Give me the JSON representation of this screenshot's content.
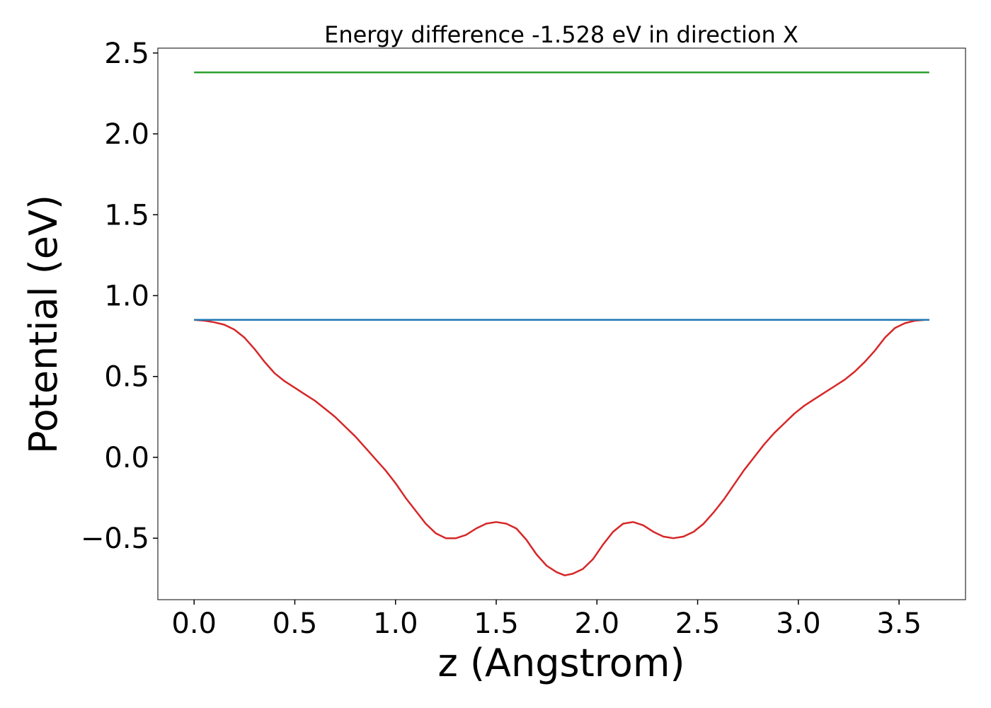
{
  "chart_data": {
    "type": "line",
    "title": "Energy difference -1.528 eV in direction X",
    "xlabel": "z (Angstrom)",
    "ylabel": "Potential (eV)",
    "xlim": [
      -0.18,
      3.83
    ],
    "ylim": [
      -0.88,
      2.53
    ],
    "xticks": [
      0.0,
      0.5,
      1.0,
      1.5,
      2.0,
      2.5,
      3.0,
      3.5
    ],
    "yticks": [
      -0.5,
      0.0,
      0.5,
      1.0,
      1.5,
      2.0,
      2.5
    ],
    "xtick_labels": [
      "0.0",
      "0.5",
      "1.0",
      "1.5",
      "2.0",
      "2.5",
      "3.0",
      "3.5"
    ],
    "ytick_labels": [
      "−0.5",
      "0.0",
      "0.5",
      "1.0",
      "1.5",
      "2.0",
      "2.5"
    ],
    "grid": false,
    "series": [
      {
        "color": "#d62728",
        "x": [
          0.0,
          0.05,
          0.1,
          0.15,
          0.2,
          0.25,
          0.3,
          0.35,
          0.4,
          0.45,
          0.5,
          0.55,
          0.6,
          0.65,
          0.7,
          0.75,
          0.8,
          0.85,
          0.9,
          0.95,
          1.0,
          1.05,
          1.1,
          1.15,
          1.2,
          1.25,
          1.3,
          1.35,
          1.4,
          1.45,
          1.5,
          1.55,
          1.6,
          1.65,
          1.7,
          1.75,
          1.8,
          1.84,
          1.88,
          1.93,
          1.98,
          2.03,
          2.08,
          2.13,
          2.18,
          2.23,
          2.28,
          2.33,
          2.38,
          2.43,
          2.48,
          2.53,
          2.58,
          2.63,
          2.68,
          2.73,
          2.78,
          2.83,
          2.88,
          2.93,
          2.98,
          3.03,
          3.08,
          3.13,
          3.18,
          3.23,
          3.28,
          3.33,
          3.38,
          3.43,
          3.48,
          3.53,
          3.58,
          3.63,
          3.65
        ],
        "y": [
          0.85,
          0.845,
          0.835,
          0.82,
          0.79,
          0.74,
          0.67,
          0.59,
          0.52,
          0.47,
          0.43,
          0.39,
          0.35,
          0.3,
          0.25,
          0.19,
          0.13,
          0.06,
          -0.01,
          -0.08,
          -0.16,
          -0.25,
          -0.33,
          -0.41,
          -0.47,
          -0.5,
          -0.5,
          -0.48,
          -0.44,
          -0.41,
          -0.4,
          -0.41,
          -0.44,
          -0.51,
          -0.6,
          -0.67,
          -0.71,
          -0.73,
          -0.72,
          -0.69,
          -0.63,
          -0.54,
          -0.46,
          -0.41,
          -0.4,
          -0.42,
          -0.46,
          -0.49,
          -0.5,
          -0.49,
          -0.46,
          -0.41,
          -0.34,
          -0.26,
          -0.17,
          -0.08,
          0.0,
          0.08,
          0.15,
          0.21,
          0.27,
          0.32,
          0.36,
          0.4,
          0.44,
          0.48,
          0.53,
          0.59,
          0.66,
          0.74,
          0.8,
          0.83,
          0.845,
          0.85,
          0.85
        ]
      },
      {
        "color": "#1f77b4",
        "x": [
          0.0,
          3.65
        ],
        "y": [
          0.85,
          0.85
        ]
      },
      {
        "color": "#2ca02c",
        "x": [
          0.0,
          3.65
        ],
        "y": [
          2.38,
          2.38
        ]
      }
    ]
  }
}
